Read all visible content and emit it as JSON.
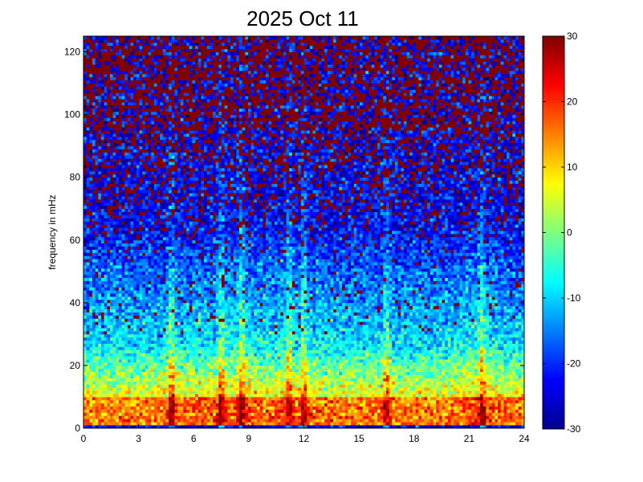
{
  "chart_data": {
    "type": "heatmap",
    "title": "2025 Oct 11",
    "xlabel": "",
    "ylabel": "frequency in mHz",
    "xlim": [
      0,
      24
    ],
    "ylim": [
      0,
      125
    ],
    "x_ticks": [
      "0",
      "3",
      "6",
      "9",
      "12",
      "15",
      "18",
      "21",
      "24"
    ],
    "y_ticks": [
      "0",
      "20",
      "40",
      "60",
      "80",
      "100",
      "120"
    ],
    "colorbar": {
      "range": [
        -30,
        30
      ],
      "ticks": [
        "-30",
        "-20",
        "-10",
        "0",
        "10",
        "20",
        "30"
      ],
      "colormap": "jet"
    },
    "grid": false,
    "features": {
      "bright_vertical_streaks_hours": [
        4.8,
        7.5,
        8.6,
        11.2,
        12.0,
        16.5,
        21.7
      ],
      "strongest_power_band_mHz": [
        0,
        20
      ],
      "saturated_high_freq_band_mHz": [
        80,
        125
      ]
    }
  }
}
